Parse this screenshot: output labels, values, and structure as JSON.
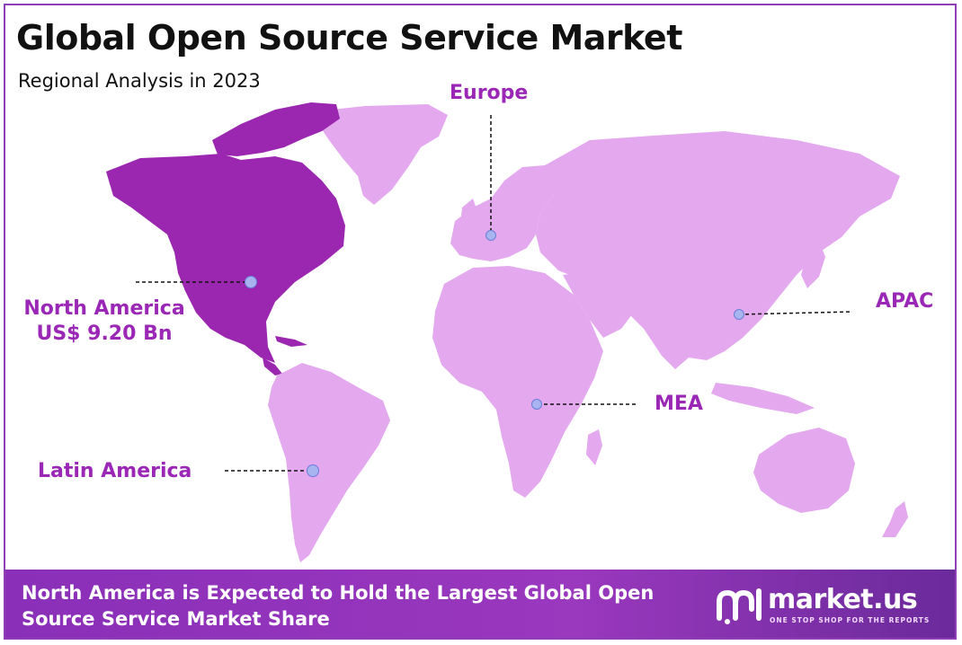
{
  "header": {
    "title": "Global Open Source Service Market",
    "subtitle": "Regional Analysis in 2023"
  },
  "regions": [
    {
      "name": "North America",
      "value": "US$ 9.20 Bn",
      "highlighted": true
    },
    {
      "name": "Europe"
    },
    {
      "name": "APAC"
    },
    {
      "name": "MEA"
    },
    {
      "name": "Latin America"
    }
  ],
  "footer": {
    "headline": "North America is Expected to Hold the Largest Global Open Source Service Market Share"
  },
  "brand": {
    "name": "market.us",
    "tagline": "ONE STOP SHOP FOR THE REPORTS"
  },
  "colors": {
    "highlight_region": "#9b27b0",
    "other_regions": "#e3a8ee",
    "label_text": "#9a27b5",
    "marker": "#a8b4f0",
    "footer_bg": "#8a2fb8"
  }
}
